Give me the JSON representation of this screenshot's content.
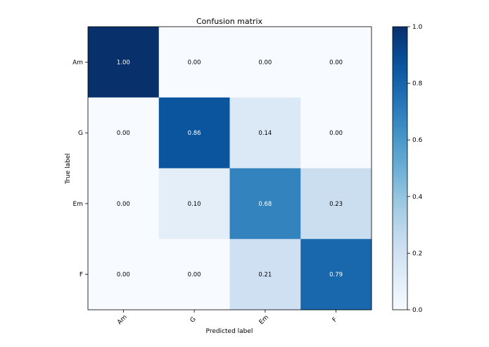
{
  "chart_data": {
    "type": "heatmap",
    "title": "Confusion matrix",
    "xlabel": "Predicted label",
    "ylabel": "True label",
    "x_categories": [
      "Am",
      "G",
      "Em",
      "F"
    ],
    "y_categories": [
      "Am",
      "G",
      "Em",
      "F"
    ],
    "values": [
      [
        1.0,
        0.0,
        0.0,
        0.0
      ],
      [
        0.0,
        0.86,
        0.14,
        0.0
      ],
      [
        0.0,
        0.1,
        0.68,
        0.23
      ],
      [
        0.0,
        0.0,
        0.21,
        0.79
      ]
    ],
    "cell_labels": [
      [
        "1.00",
        "0.00",
        "0.00",
        "0.00"
      ],
      [
        "0.00",
        "0.86",
        "0.14",
        "0.00"
      ],
      [
        "0.00",
        "0.10",
        "0.68",
        "0.23"
      ],
      [
        "0.00",
        "0.00",
        "0.21",
        "0.79"
      ]
    ],
    "colorbar": {
      "range": [
        0.0,
        1.0
      ],
      "ticks": [
        0.0,
        0.2,
        0.4,
        0.6,
        0.8,
        1.0
      ],
      "tick_labels": [
        "0.0",
        "0.2",
        "0.4",
        "0.6",
        "0.8",
        "1.0"
      ],
      "colormap": "Blues"
    },
    "text_colors": {
      "dark": "#000000",
      "light": "#ffffff"
    },
    "threshold": 0.5
  }
}
